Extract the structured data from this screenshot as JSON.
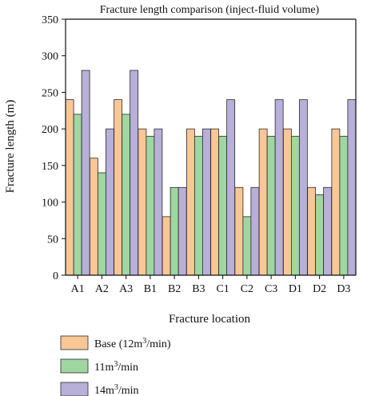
{
  "chart_data": {
    "type": "bar",
    "title": "Fracture length comparison (inject-fluid volume)",
    "xlabel": "Fracture location",
    "ylabel": "Fracture length (m)",
    "ylim": [
      0,
      350
    ],
    "yticks": [
      0,
      50,
      100,
      150,
      200,
      250,
      300,
      350
    ],
    "grid": false,
    "legend_position": "bottom",
    "categories": [
      "A1",
      "A2",
      "A3",
      "B1",
      "B2",
      "B3",
      "C1",
      "C2",
      "C3",
      "D1",
      "D2",
      "D3"
    ],
    "series": [
      {
        "name": "Base (12m3/min)",
        "name_parts": [
          "Base (12m",
          "3",
          "/min)"
        ],
        "color": "#f9c796",
        "values": [
          240,
          160,
          240,
          200,
          80,
          200,
          200,
          120,
          200,
          200,
          120,
          200
        ]
      },
      {
        "name": "11m3/min",
        "name_parts": [
          "11m",
          "3",
          "/min"
        ],
        "color": "#9fd6a2",
        "values": [
          220,
          140,
          220,
          190,
          120,
          190,
          190,
          80,
          190,
          190,
          110,
          190
        ]
      },
      {
        "name": "14m3/min",
        "name_parts": [
          "14m",
          "3",
          "/min"
        ],
        "color": "#b8b0d8",
        "values": [
          280,
          200,
          280,
          200,
          120,
          200,
          240,
          120,
          240,
          240,
          120,
          240
        ]
      }
    ]
  }
}
